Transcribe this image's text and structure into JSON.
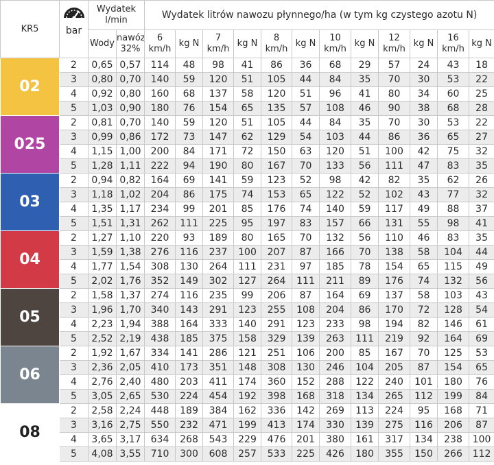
{
  "header": {
    "model": "KR5",
    "pressure_unit": "bar",
    "flow_title": "Wydatek l/min",
    "water_label": "Wody",
    "fert_label": "nawóz 32%",
    "rate_title": "Wydatek litrów nawozu płynnego/ha (w tym kg czystego azotu N)",
    "speeds": [
      "6 km/h",
      "7 km/h",
      "8 km/h",
      "10 km/h",
      "12 km/h",
      "16 km/h"
    ],
    "kgn_label": "kg N",
    "gauge_icon": "speedometer-icon"
  },
  "nozzles": [
    {
      "label": "02",
      "color": "#f5c342",
      "rows": [
        [
          "2",
          "0,65",
          "0,57",
          "114",
          "48",
          "98",
          "41",
          "86",
          "36",
          "68",
          "29",
          "57",
          "24",
          "43",
          "18"
        ],
        [
          "3",
          "0,80",
          "0,70",
          "140",
          "59",
          "120",
          "51",
          "105",
          "44",
          "84",
          "35",
          "70",
          "30",
          "53",
          "22"
        ],
        [
          "4",
          "0,92",
          "0,80",
          "160",
          "68",
          "137",
          "58",
          "120",
          "51",
          "96",
          "41",
          "80",
          "34",
          "60",
          "25"
        ],
        [
          "5",
          "1,03",
          "0,90",
          "180",
          "76",
          "154",
          "65",
          "135",
          "57",
          "108",
          "46",
          "90",
          "38",
          "68",
          "28"
        ]
      ]
    },
    {
      "label": "025",
      "color": "#b145a4",
      "rows": [
        [
          "2",
          "0,81",
          "0,70",
          "140",
          "59",
          "120",
          "51",
          "105",
          "44",
          "84",
          "35",
          "70",
          "30",
          "53",
          "22"
        ],
        [
          "3",
          "0,99",
          "0,86",
          "172",
          "73",
          "147",
          "62",
          "129",
          "54",
          "103",
          "44",
          "86",
          "36",
          "65",
          "27"
        ],
        [
          "4",
          "1,15",
          "1,00",
          "200",
          "84",
          "171",
          "72",
          "150",
          "63",
          "120",
          "51",
          "100",
          "42",
          "75",
          "32"
        ],
        [
          "5",
          "1,28",
          "1,11",
          "222",
          "94",
          "190",
          "80",
          "167",
          "70",
          "133",
          "56",
          "111",
          "47",
          "83",
          "35"
        ]
      ]
    },
    {
      "label": "03",
      "color": "#2f5fb0",
      "rows": [
        [
          "2",
          "0,94",
          "0,82",
          "164",
          "69",
          "141",
          "59",
          "123",
          "52",
          "98",
          "42",
          "82",
          "35",
          "62",
          "26"
        ],
        [
          "3",
          "1,18",
          "1,02",
          "204",
          "86",
          "175",
          "74",
          "153",
          "65",
          "122",
          "52",
          "102",
          "43",
          "77",
          "32"
        ],
        [
          "4",
          "1,35",
          "1,17",
          "234",
          "99",
          "201",
          "85",
          "176",
          "74",
          "140",
          "59",
          "117",
          "49",
          "88",
          "37"
        ],
        [
          "5",
          "1,51",
          "1,31",
          "262",
          "111",
          "225",
          "95",
          "197",
          "83",
          "157",
          "66",
          "131",
          "55",
          "98",
          "41"
        ]
      ]
    },
    {
      "label": "04",
      "color": "#d23b45",
      "rows": [
        [
          "2",
          "1,27",
          "1,10",
          "220",
          "93",
          "189",
          "80",
          "165",
          "70",
          "132",
          "56",
          "110",
          "46",
          "83",
          "35"
        ],
        [
          "3",
          "1,59",
          "1,38",
          "276",
          "116",
          "237",
          "100",
          "207",
          "87",
          "166",
          "70",
          "138",
          "58",
          "104",
          "44"
        ],
        [
          "4",
          "1,77",
          "1,54",
          "308",
          "130",
          "264",
          "111",
          "231",
          "97",
          "185",
          "78",
          "154",
          "65",
          "115",
          "49"
        ],
        [
          "5",
          "2,02",
          "1,76",
          "352",
          "149",
          "302",
          "127",
          "264",
          "111",
          "211",
          "89",
          "176",
          "74",
          "132",
          "56"
        ]
      ]
    },
    {
      "label": "05",
      "color": "#4e4541",
      "rows": [
        [
          "2",
          "1,58",
          "1,37",
          "274",
          "116",
          "235",
          "99",
          "206",
          "87",
          "164",
          "69",
          "137",
          "58",
          "103",
          "43"
        ],
        [
          "3",
          "1,96",
          "1,70",
          "340",
          "143",
          "291",
          "123",
          "255",
          "108",
          "204",
          "86",
          "170",
          "72",
          "128",
          "54"
        ],
        [
          "4",
          "2,23",
          "1,94",
          "388",
          "164",
          "333",
          "140",
          "291",
          "123",
          "233",
          "98",
          "194",
          "82",
          "146",
          "61"
        ],
        [
          "5",
          "2,52",
          "2,19",
          "438",
          "185",
          "375",
          "158",
          "329",
          "139",
          "263",
          "111",
          "219",
          "92",
          "164",
          "69"
        ]
      ]
    },
    {
      "label": "06",
      "color": "#7a8590",
      "rows": [
        [
          "2",
          "1,92",
          "1,67",
          "334",
          "141",
          "286",
          "121",
          "251",
          "106",
          "200",
          "85",
          "167",
          "70",
          "125",
          "53"
        ],
        [
          "3",
          "2,36",
          "2,05",
          "410",
          "173",
          "351",
          "148",
          "308",
          "130",
          "246",
          "104",
          "205",
          "87",
          "154",
          "65"
        ],
        [
          "4",
          "2,76",
          "2,40",
          "480",
          "203",
          "411",
          "174",
          "360",
          "152",
          "288",
          "122",
          "240",
          "101",
          "180",
          "76"
        ],
        [
          "5",
          "3,05",
          "2,65",
          "530",
          "224",
          "454",
          "192",
          "398",
          "168",
          "318",
          "134",
          "265",
          "112",
          "199",
          "84"
        ]
      ]
    },
    {
      "label": "08",
      "color": "#ffffff",
      "rows": [
        [
          "2",
          "2,58",
          "2,24",
          "448",
          "189",
          "384",
          "162",
          "336",
          "142",
          "269",
          "113",
          "224",
          "95",
          "168",
          "71"
        ],
        [
          "3",
          "3,16",
          "2,75",
          "550",
          "232",
          "471",
          "199",
          "413",
          "174",
          "330",
          "139",
          "275",
          "116",
          "206",
          "87"
        ],
        [
          "4",
          "3,65",
          "3,17",
          "634",
          "268",
          "543",
          "229",
          "476",
          "201",
          "380",
          "161",
          "317",
          "134",
          "238",
          "100"
        ],
        [
          "5",
          "4,08",
          "3,55",
          "710",
          "300",
          "608",
          "257",
          "533",
          "225",
          "426",
          "180",
          "355",
          "150",
          "266",
          "112"
        ]
      ]
    }
  ]
}
